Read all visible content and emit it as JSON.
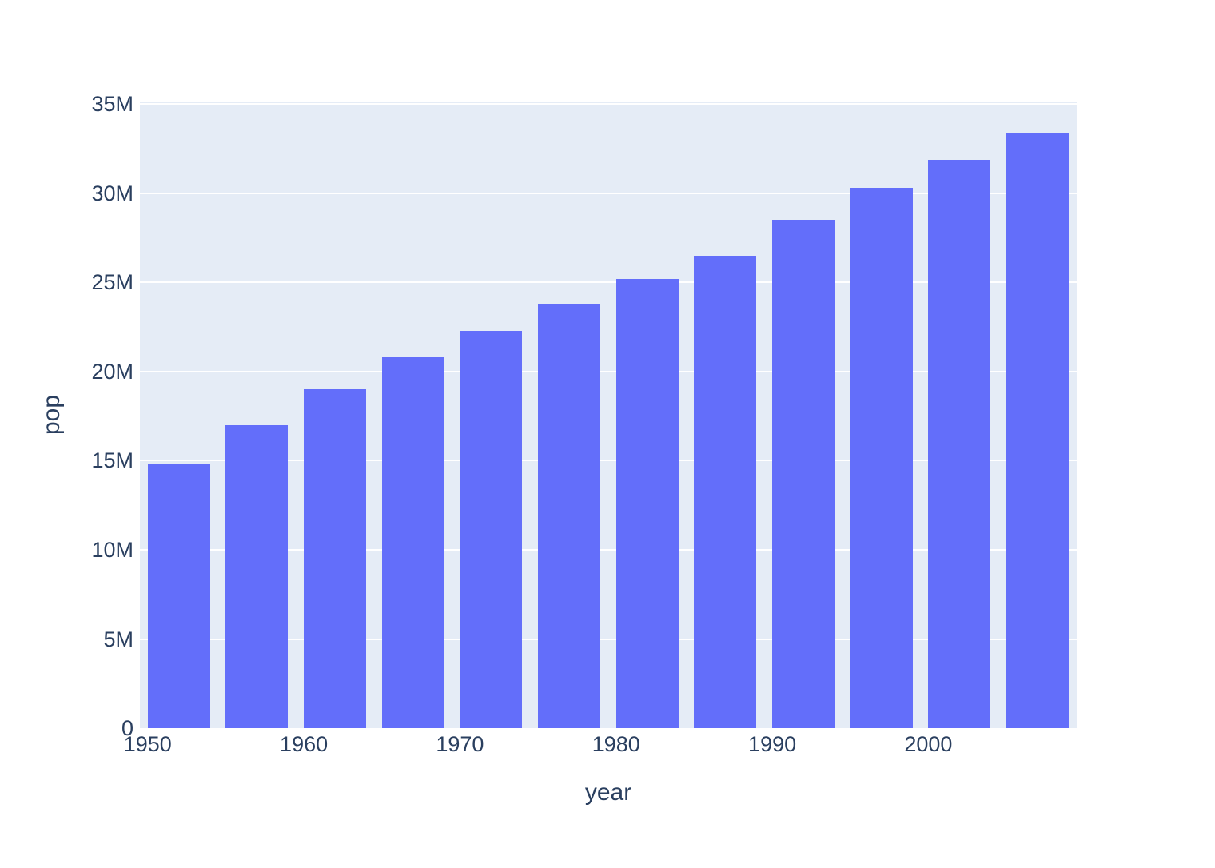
{
  "figure": {
    "background_color": "#ffffff",
    "plot_background_color": "#E5ECF6",
    "gridline_color": "#ffffff",
    "text_color": "#2a3f5f",
    "bar_color": "#636EFA"
  },
  "chart_data": {
    "type": "bar",
    "title": "",
    "xlabel": "year",
    "ylabel": "pop",
    "grid": true,
    "legend_position": "none",
    "x": [
      1952,
      1957,
      1962,
      1967,
      1972,
      1977,
      1982,
      1987,
      1992,
      1997,
      2002,
      2007
    ],
    "values": [
      14800000,
      17000000,
      19000000,
      20800000,
      22300000,
      23800000,
      25200000,
      26500000,
      28500000,
      30300000,
      31900000,
      33400000
    ],
    "bar_width_x_units": 4,
    "xlim": [
      1949.5,
      2009.5
    ],
    "ylim": [
      0,
      35150000
    ],
    "x_ticks": [
      {
        "value": 1950,
        "label": "1950"
      },
      {
        "value": 1960,
        "label": "1960"
      },
      {
        "value": 1970,
        "label": "1970"
      },
      {
        "value": 1980,
        "label": "1980"
      },
      {
        "value": 1990,
        "label": "1990"
      },
      {
        "value": 2000,
        "label": "2000"
      }
    ],
    "y_ticks": [
      {
        "value": 0,
        "label": "0"
      },
      {
        "value": 5000000,
        "label": "5M"
      },
      {
        "value": 10000000,
        "label": "10M"
      },
      {
        "value": 15000000,
        "label": "15M"
      },
      {
        "value": 20000000,
        "label": "20M"
      },
      {
        "value": 25000000,
        "label": "25M"
      },
      {
        "value": 30000000,
        "label": "30M"
      },
      {
        "value": 35000000,
        "label": "35M"
      }
    ]
  }
}
